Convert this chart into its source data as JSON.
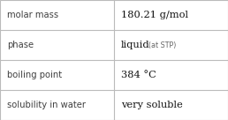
{
  "rows": [
    {
      "label": "molar mass",
      "value": "180.21 g/mol",
      "value_extra": null
    },
    {
      "label": "phase",
      "value": "liquid",
      "value_extra": "(at STP)"
    },
    {
      "label": "boiling point",
      "value": "384 °C",
      "value_extra": null
    },
    {
      "label": "solubility in water",
      "value": "very soluble",
      "value_extra": null
    }
  ],
  "col_split": 0.5,
  "background_color": "#ffffff",
  "border_color": "#bbbbbb",
  "label_fontsize": 7.2,
  "value_fontsize": 8.2,
  "extra_fontsize": 5.8,
  "label_color": "#404040",
  "value_color": "#111111",
  "extra_color": "#666666",
  "label_font": "DejaVu Sans",
  "value_font": "DejaVu Serif"
}
